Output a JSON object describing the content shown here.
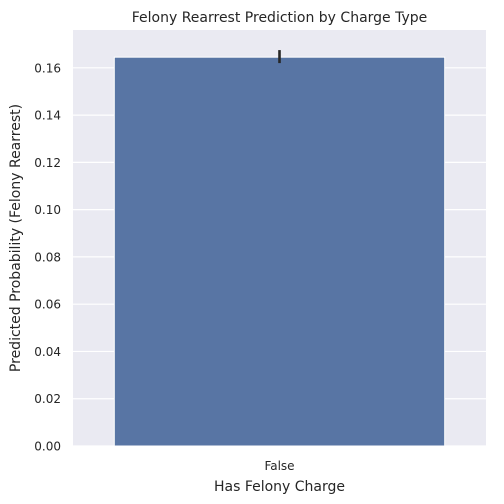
{
  "chart_data": {
    "type": "bar",
    "title": "Felony Rearrest Prediction by Charge Type",
    "xlabel": "Has Felony Charge",
    "ylabel": "Predicted Probability (Felony Rearrest)",
    "categories": [
      "False"
    ],
    "values": [
      0.1645
    ],
    "error_bars": [
      [
        0.162,
        0.1675
      ]
    ],
    "ylim": [
      0,
      0.176
    ],
    "yticks": [
      "0.00",
      "0.02",
      "0.04",
      "0.06",
      "0.08",
      "0.10",
      "0.12",
      "0.14",
      "0.16"
    ],
    "grid": true,
    "legend": "none",
    "colors": {
      "bar": "#5875a4",
      "plot_background": "#eaeaf2",
      "grid": "#ffffff",
      "error_bar": "#262626"
    }
  }
}
